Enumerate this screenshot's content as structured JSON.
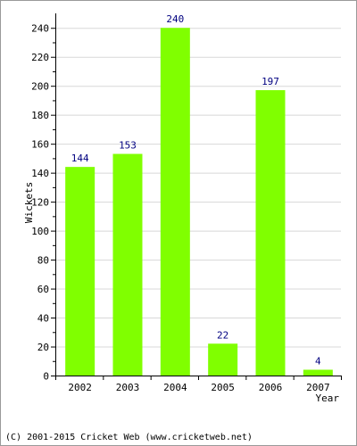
{
  "chart_data": {
    "type": "bar",
    "categories": [
      "2002",
      "2003",
      "2004",
      "2005",
      "2006",
      "2007"
    ],
    "values": [
      144,
      153,
      240,
      22,
      197,
      4
    ],
    "data_labels": [
      "144",
      "153",
      "240",
      "22",
      "197",
      "4"
    ],
    "title": "",
    "xlabel": "Year",
    "ylabel": "Wickets",
    "ylim": [
      0,
      250
    ],
    "yticks": [
      0,
      20,
      40,
      60,
      80,
      100,
      120,
      140,
      160,
      180,
      200,
      220,
      240
    ],
    "grid": true,
    "colors": {
      "bar": "#80ff00",
      "label": "#000080",
      "grid": "#d8d8d8",
      "axis": "#000000"
    }
  },
  "footer": {
    "copyright": "(C) 2001-2015 Cricket Web (www.cricketweb.net)"
  }
}
